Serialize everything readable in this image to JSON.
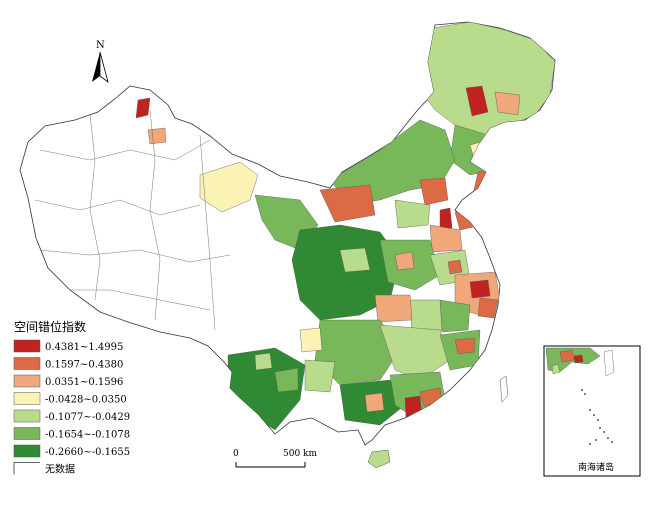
{
  "map": {
    "north_label": "N",
    "legend": {
      "title": "空间错位指数",
      "classes": [
        {
          "label": "0.4381~1.4995",
          "color": "#c0231f"
        },
        {
          "label": "0.1597~0.4380",
          "color": "#dc6a45"
        },
        {
          "label": "0.0351~0.1596",
          "color": "#f0a77a"
        },
        {
          "label": "-0.0428~0.0350",
          "color": "#fbf3b5"
        },
        {
          "label": "-0.1077~-0.0429",
          "color": "#b9dc8c"
        },
        {
          "label": "-0.1654~-0.1078",
          "color": "#78b85a"
        },
        {
          "label": "-0.2660~-0.1655",
          "color": "#2f8a33"
        }
      ],
      "nodata_label": "无数据"
    },
    "scale": {
      "zero": "0",
      "end": "500 km"
    },
    "inset_label": "南海诸岛"
  }
}
